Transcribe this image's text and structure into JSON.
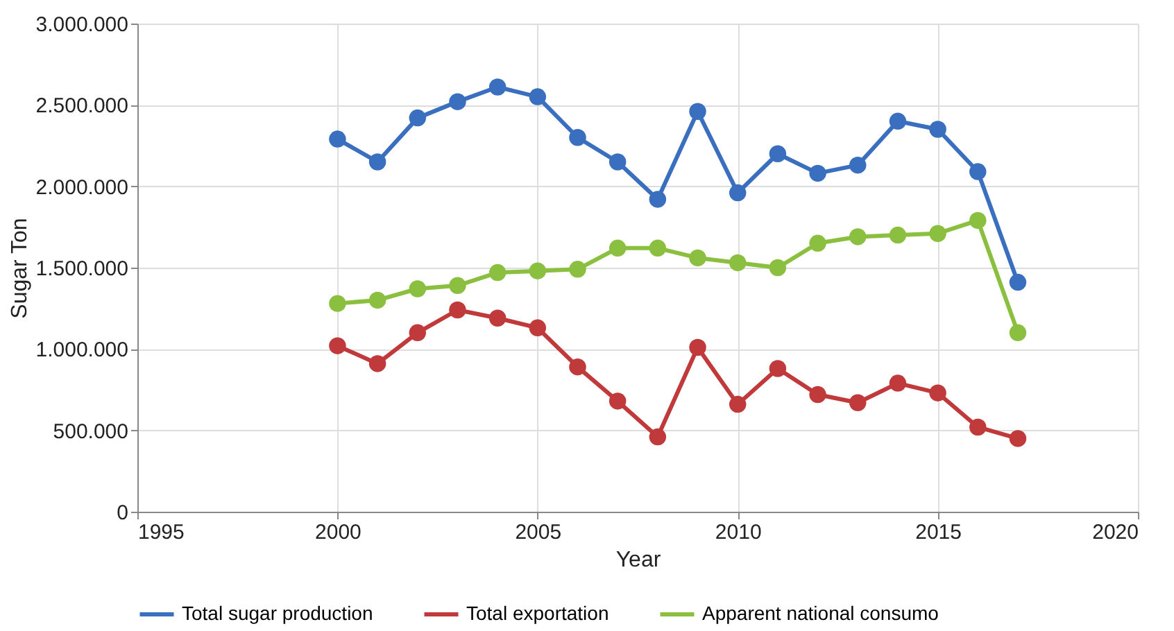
{
  "chart_data": {
    "type": "line",
    "xlabel": "Year",
    "ylabel": "Sugar Ton",
    "x": [
      2000,
      2001,
      2002,
      2003,
      2004,
      2005,
      2006,
      2007,
      2008,
      2009,
      2010,
      2011,
      2012,
      2013,
      2014,
      2015,
      2016,
      2017
    ],
    "series": [
      {
        "name": "Total sugar production",
        "color": "#3a6fbf",
        "values": [
          2290000,
          2150000,
          2420000,
          2520000,
          2610000,
          2550000,
          2300000,
          2150000,
          1920000,
          2460000,
          1960000,
          2200000,
          2080000,
          2130000,
          2400000,
          2350000,
          2090000,
          1410000
        ]
      },
      {
        "name": "Total exportation",
        "color": "#c0393b",
        "values": [
          1020000,
          910000,
          1100000,
          1240000,
          1190000,
          1130000,
          890000,
          680000,
          460000,
          1010000,
          660000,
          880000,
          720000,
          670000,
          790000,
          730000,
          520000,
          450000
        ]
      },
      {
        "name": "Apparent national consumo",
        "color": "#8bbf3f",
        "values": [
          1280000,
          1300000,
          1370000,
          1390000,
          1470000,
          1480000,
          1490000,
          1620000,
          1620000,
          1560000,
          1530000,
          1500000,
          1650000,
          1690000,
          1700000,
          1710000,
          1790000,
          1100000
        ]
      }
    ],
    "xlim": [
      1995,
      2020
    ],
    "xticks": [
      1995,
      2000,
      2005,
      2010,
      2015,
      2020
    ],
    "ylim": [
      0,
      3000000
    ],
    "yticks": [
      0,
      {
        "value": 500000,
        "label": "500.000"
      },
      {
        "value": 1000000,
        "label": "1.000.000"
      },
      {
        "value": 1500000,
        "label": "1.500.000"
      },
      {
        "value": 2000000,
        "label": "2.000.000"
      },
      {
        "value": 2500000,
        "label": "2.500.000"
      },
      {
        "value": 3000000,
        "label": "3.000.000"
      }
    ],
    "grid": true,
    "legend": "bottom",
    "marker": "circle",
    "line_style": "solid"
  }
}
